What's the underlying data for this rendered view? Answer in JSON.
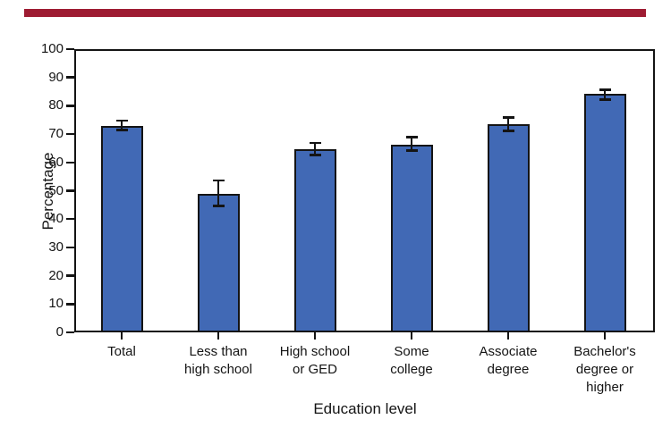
{
  "chart_data": {
    "type": "bar",
    "title": "",
    "xlabel": "Education level",
    "ylabel": "Percentage",
    "ylim": [
      0,
      100
    ],
    "ytick_step": 10,
    "ytick_labels": [
      "0",
      "10",
      "20",
      "30",
      "40",
      "50",
      "60",
      "70",
      "80",
      "90",
      "100"
    ],
    "grid": false,
    "legend": "none",
    "categories": [
      "Total",
      "Less than high school",
      "High school or GED",
      "Some college",
      "Associate degree",
      "Bachelor's degree or higher"
    ],
    "categories_wrapped": [
      "Total",
      "Less than\nhigh school",
      "High school\nor GED",
      "Some\ncollege",
      "Associate\ndegree",
      "Bachelor's\ndegree or\nhigher"
    ],
    "values": [
      73.0,
      49.0,
      64.8,
      66.3,
      73.6,
      84.2
    ],
    "error_low": [
      71.4,
      44.7,
      62.6,
      64.2,
      71.1,
      82.1
    ],
    "error_high": [
      74.8,
      53.7,
      66.8,
      68.9,
      75.9,
      85.7
    ],
    "bar_color": "#4169b5",
    "bar_border_color": "#141414",
    "error_bar_color": "#141414",
    "axis_color": "#141414",
    "top_rule_color": "#9e1b32"
  }
}
